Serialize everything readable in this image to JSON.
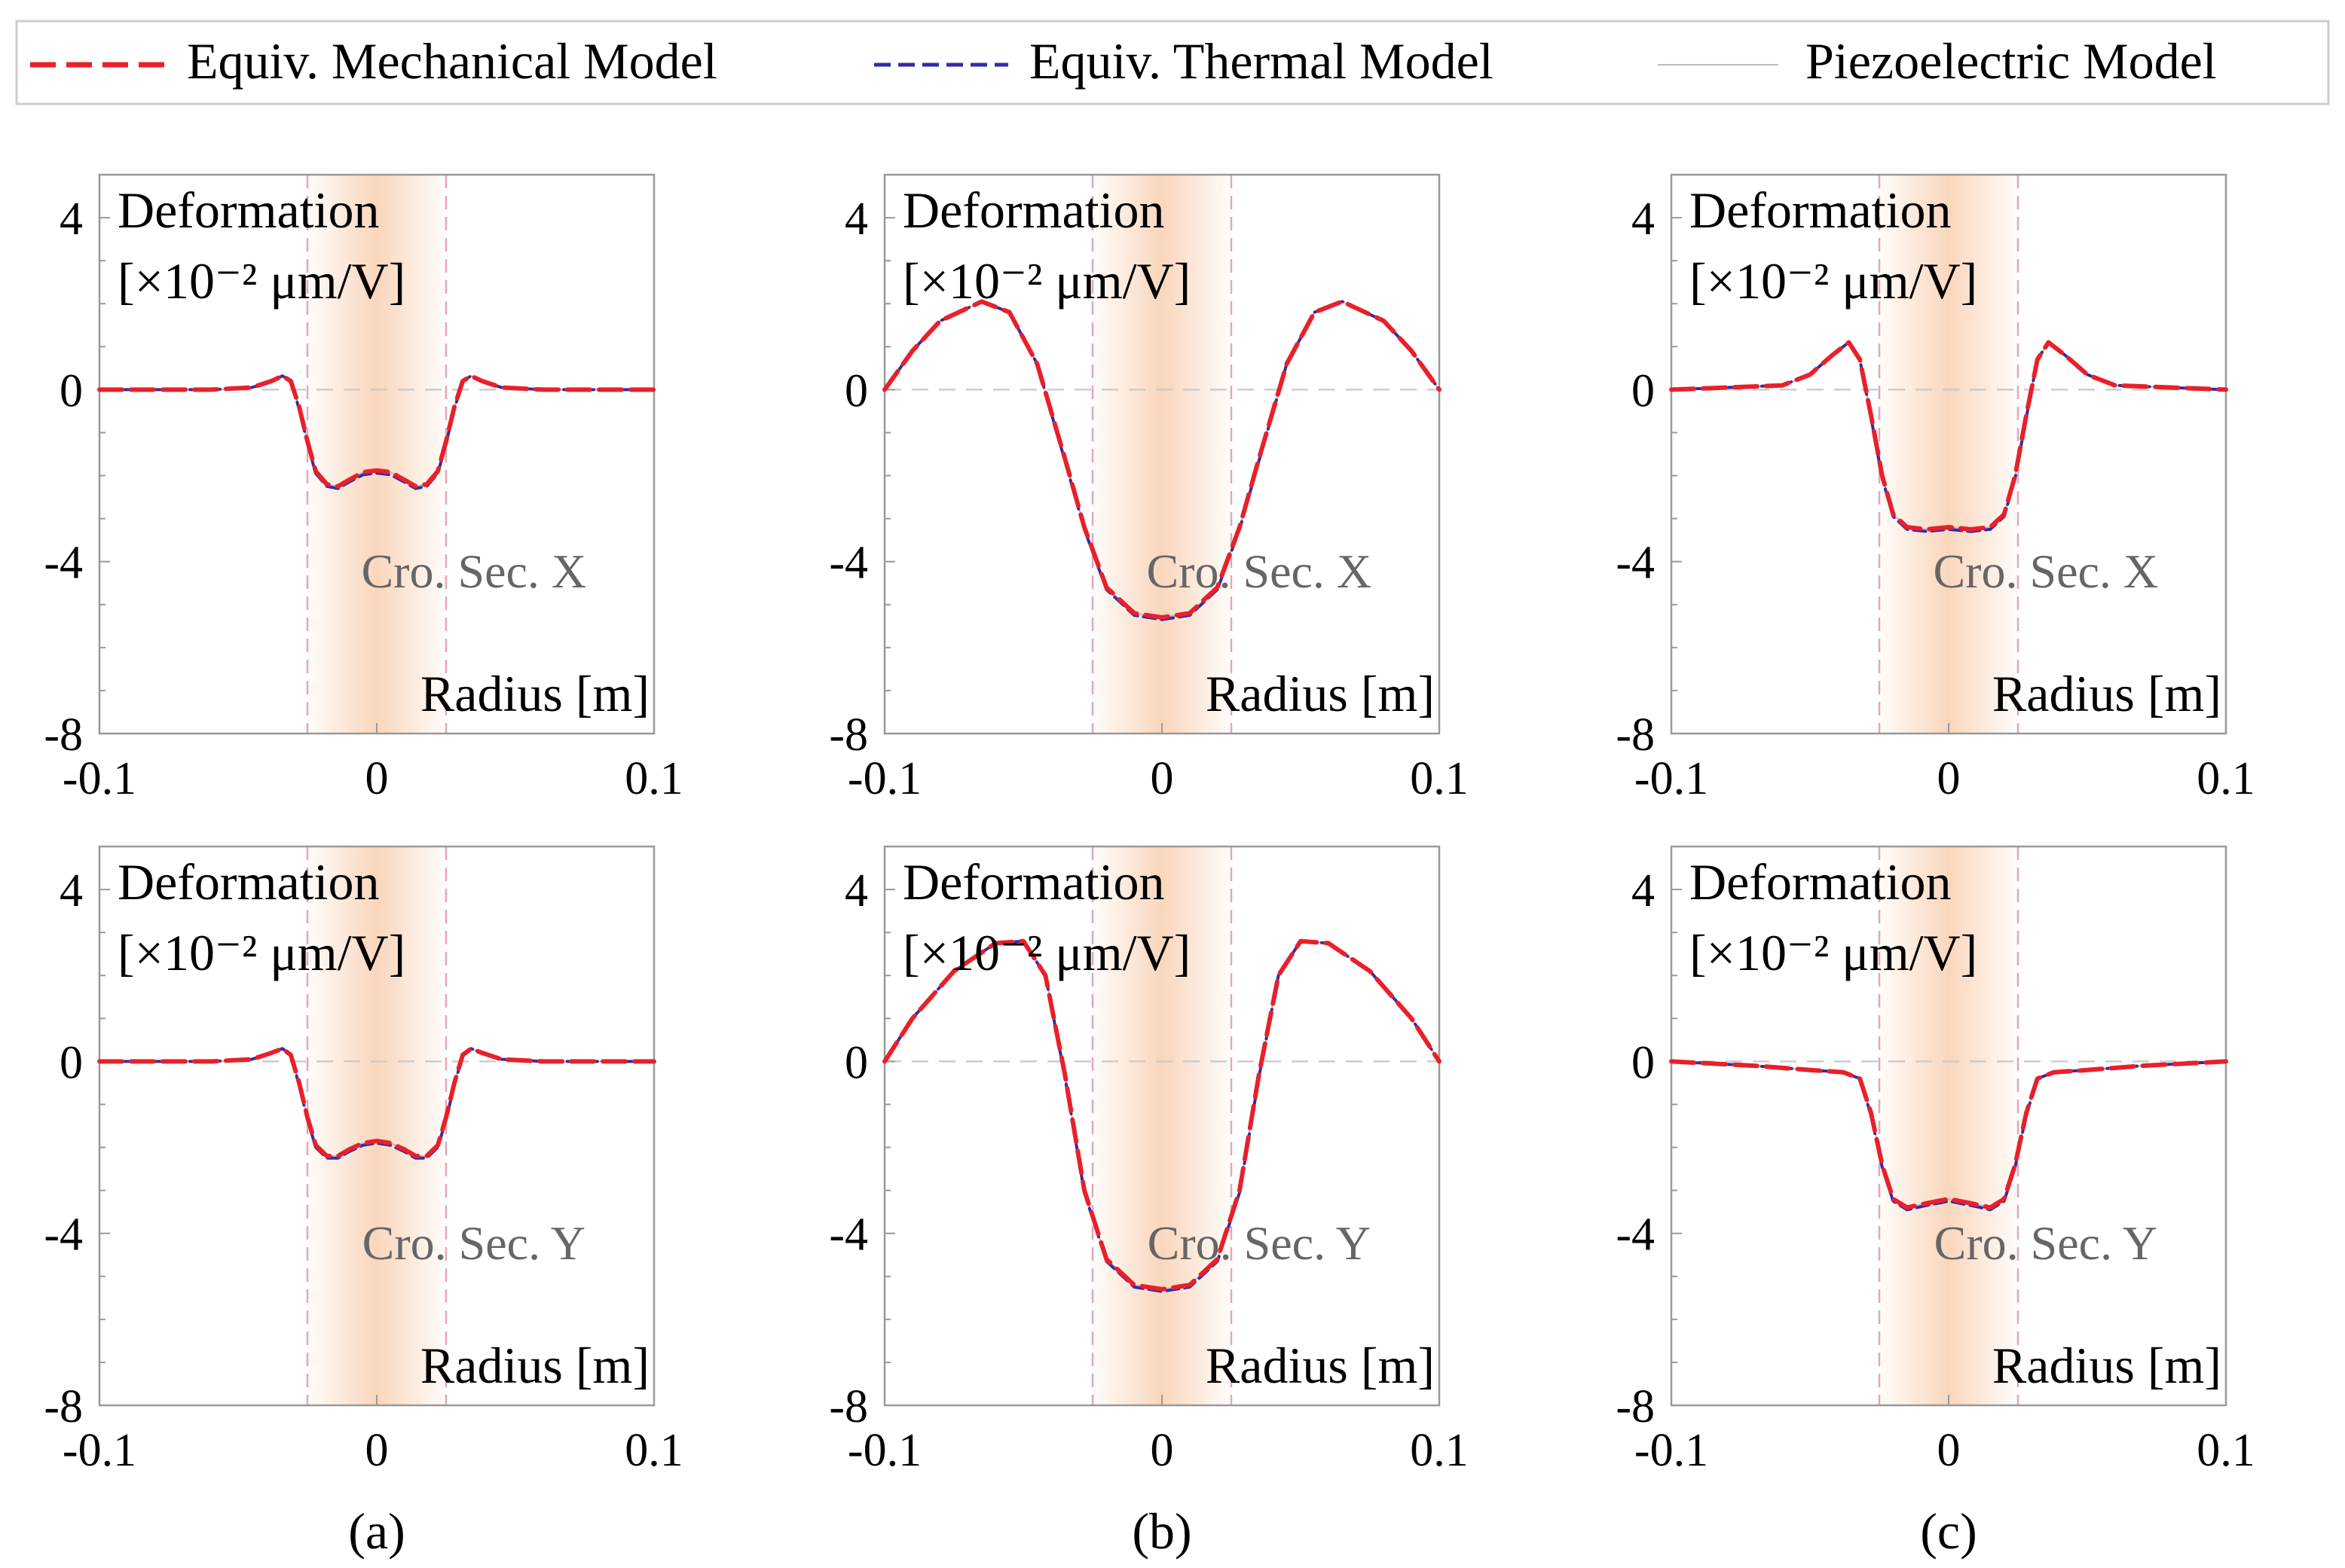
{
  "legend": {
    "placement": "top",
    "entries": [
      {
        "label": "Equiv. Mechanical Model",
        "color": "#e8202a",
        "style": "dashed"
      },
      {
        "label": "Equiv. Thermal Model",
        "color": "#2e2ea8",
        "style": "dashed"
      },
      {
        "label": "Piezoelectric Model",
        "color": "#bbbbbb",
        "style": "solid"
      }
    ]
  },
  "colors": {
    "highlight": "#f7c9a6",
    "guide": "#e3a8b4",
    "annotation": "#666666",
    "axis": "#999999"
  },
  "column_labels": [
    "(a)",
    "(b)",
    "(c)"
  ],
  "chart_data": [
    {
      "type": "line",
      "id": "a-top",
      "ylabel_line1": "Deformation",
      "ylabel_line2": "[×10⁻² μm/V]",
      "xlabel": "Radius [m]",
      "annotation": "Cro. Sec. X",
      "xlim": [
        -0.1,
        0.1
      ],
      "ylim": [
        -8,
        5
      ],
      "yticks": [
        4,
        0,
        -4,
        -8
      ],
      "xticks": [
        -0.1,
        0,
        0.1
      ],
      "highlight_range": [
        -0.025,
        0.025
      ],
      "x": [
        -0.1,
        -0.06,
        -0.045,
        -0.038,
        -0.034,
        -0.031,
        -0.028,
        -0.025,
        -0.022,
        -0.018,
        -0.014,
        -0.01,
        -0.005,
        0,
        0.005,
        0.01,
        0.014,
        0.018,
        0.022,
        0.025,
        0.028,
        0.031,
        0.034,
        0.038,
        0.045,
        0.06,
        0.1
      ],
      "series": [
        {
          "name": "Equiv. Mechanical Model",
          "y": [
            0,
            0,
            0.05,
            0.2,
            0.32,
            0.2,
            -0.4,
            -1.2,
            -1.9,
            -2.2,
            -2.25,
            -2.1,
            -1.92,
            -1.88,
            -1.92,
            -2.1,
            -2.25,
            -2.2,
            -1.9,
            -1.2,
            -0.4,
            0.2,
            0.32,
            0.2,
            0.05,
            0,
            0
          ]
        },
        {
          "name": "Equiv. Thermal Model",
          "y": [
            0,
            0,
            0.05,
            0.2,
            0.32,
            0.2,
            -0.45,
            -1.25,
            -1.95,
            -2.25,
            -2.3,
            -2.15,
            -1.98,
            -1.94,
            -1.98,
            -2.15,
            -2.3,
            -2.25,
            -1.95,
            -1.25,
            -0.45,
            0.2,
            0.32,
            0.2,
            0.05,
            0,
            0
          ]
        },
        {
          "name": "Piezoelectric Model",
          "y": [
            0,
            0,
            0.05,
            0.2,
            0.32,
            0.2,
            -0.4,
            -1.2,
            -1.9,
            -2.2,
            -2.25,
            -2.1,
            -1.92,
            -1.88,
            -1.92,
            -2.1,
            -2.25,
            -2.2,
            -1.9,
            -1.2,
            -0.4,
            0.2,
            0.32,
            0.2,
            0.05,
            0,
            0
          ]
        }
      ]
    },
    {
      "type": "line",
      "id": "b-top",
      "ylabel_line1": "Deformation",
      "ylabel_line2": "[×10⁻² μm/V]",
      "xlabel": "Radius [m]",
      "annotation": "Cro. Sec. X",
      "xlim": [
        -0.1,
        0.1
      ],
      "ylim": [
        -8,
        5
      ],
      "yticks": [
        4,
        0,
        -4,
        -8
      ],
      "xticks": [
        -0.1,
        0,
        0.1
      ],
      "highlight_range": [
        -0.025,
        0.025
      ],
      "x": [
        -0.1,
        -0.09,
        -0.08,
        -0.065,
        -0.055,
        -0.045,
        -0.035,
        -0.028,
        -0.02,
        -0.01,
        0,
        0.01,
        0.02,
        0.028,
        0.035,
        0.045,
        0.055,
        0.065,
        0.08,
        0.09,
        0.1
      ],
      "series": [
        {
          "name": "Equiv. Mechanical Model",
          "y": [
            0,
            0.9,
            1.6,
            2.05,
            1.8,
            0.6,
            -1.6,
            -3.2,
            -4.6,
            -5.2,
            -5.3,
            -5.2,
            -4.6,
            -3.2,
            -1.6,
            0.6,
            1.8,
            2.05,
            1.6,
            0.9,
            0
          ]
        },
        {
          "name": "Equiv. Thermal Model",
          "y": [
            0,
            0.9,
            1.6,
            2.05,
            1.8,
            0.6,
            -1.65,
            -3.25,
            -4.65,
            -5.25,
            -5.35,
            -5.25,
            -4.65,
            -3.25,
            -1.65,
            0.6,
            1.8,
            2.05,
            1.6,
            0.9,
            0
          ]
        },
        {
          "name": "Piezoelectric Model",
          "y": [
            0,
            0.9,
            1.6,
            2.05,
            1.8,
            0.6,
            -1.6,
            -3.2,
            -4.6,
            -5.2,
            -5.3,
            -5.2,
            -4.6,
            -3.2,
            -1.6,
            0.6,
            1.8,
            2.05,
            1.6,
            0.9,
            0
          ]
        }
      ]
    },
    {
      "type": "line",
      "id": "c-top",
      "ylabel_line1": "Deformation",
      "ylabel_line2": "[×10⁻² μm/V]",
      "xlabel": "Radius [m]",
      "annotation": "Cro. Sec. X",
      "xlim": [
        -0.1,
        0.1
      ],
      "ylim": [
        -8,
        5
      ],
      "yticks": [
        4,
        0,
        -4,
        -8
      ],
      "xticks": [
        -0.1,
        0,
        0.1
      ],
      "highlight_range": [
        -0.025,
        0.025
      ],
      "x": [
        -0.1,
        -0.06,
        -0.05,
        -0.042,
        -0.036,
        -0.032,
        -0.028,
        -0.024,
        -0.02,
        -0.015,
        -0.008,
        0,
        0.008,
        0.015,
        0.02,
        0.024,
        0.028,
        0.032,
        0.036,
        0.042,
        0.05,
        0.06,
        0.1
      ],
      "series": [
        {
          "name": "Equiv. Mechanical Model",
          "y": [
            0,
            0.1,
            0.35,
            0.8,
            1.1,
            0.7,
            -0.6,
            -2.0,
            -2.9,
            -3.2,
            -3.25,
            -3.2,
            -3.25,
            -3.2,
            -2.9,
            -2.0,
            -0.6,
            0.7,
            1.1,
            0.8,
            0.35,
            0.1,
            0
          ]
        },
        {
          "name": "Equiv. Thermal Model",
          "y": [
            0,
            0.1,
            0.35,
            0.8,
            1.1,
            0.7,
            -0.65,
            -2.05,
            -2.95,
            -3.25,
            -3.3,
            -3.25,
            -3.3,
            -3.25,
            -2.95,
            -2.05,
            -0.65,
            0.7,
            1.1,
            0.8,
            0.35,
            0.1,
            0
          ]
        },
        {
          "name": "Piezoelectric Model",
          "y": [
            0,
            0.1,
            0.35,
            0.8,
            1.1,
            0.7,
            -0.6,
            -2.0,
            -2.9,
            -3.2,
            -3.25,
            -3.2,
            -3.25,
            -3.2,
            -2.9,
            -2.0,
            -0.6,
            0.7,
            1.1,
            0.8,
            0.35,
            0.1,
            0
          ]
        }
      ]
    },
    {
      "type": "line",
      "id": "a-bottom",
      "ylabel_line1": "Deformation",
      "ylabel_line2": "[×10⁻² μm/V]",
      "xlabel": "Radius [m]",
      "annotation": "Cro. Sec. Y",
      "xlim": [
        -0.1,
        0.1
      ],
      "ylim": [
        -8,
        5
      ],
      "yticks": [
        4,
        0,
        -4,
        -8
      ],
      "xticks": [
        -0.1,
        0,
        0.1
      ],
      "highlight_range": [
        -0.025,
        0.025
      ],
      "x": [
        -0.1,
        -0.06,
        -0.045,
        -0.038,
        -0.034,
        -0.031,
        -0.028,
        -0.025,
        -0.022,
        -0.018,
        -0.014,
        -0.01,
        -0.005,
        0,
        0.005,
        0.01,
        0.014,
        0.018,
        0.022,
        0.025,
        0.028,
        0.031,
        0.034,
        0.038,
        0.045,
        0.06,
        0.1
      ],
      "series": [
        {
          "name": "Equiv. Mechanical Model",
          "y": [
            0,
            0,
            0.05,
            0.2,
            0.3,
            0.15,
            -0.5,
            -1.3,
            -1.95,
            -2.2,
            -2.2,
            -2.05,
            -1.9,
            -1.85,
            -1.9,
            -2.05,
            -2.2,
            -2.2,
            -1.95,
            -1.3,
            -0.5,
            0.15,
            0.3,
            0.2,
            0.05,
            0,
            0
          ]
        },
        {
          "name": "Equiv. Thermal Model",
          "y": [
            0,
            0,
            0.05,
            0.2,
            0.3,
            0.15,
            -0.55,
            -1.35,
            -2.0,
            -2.25,
            -2.25,
            -2.1,
            -1.95,
            -1.9,
            -1.95,
            -2.1,
            -2.25,
            -2.25,
            -2.0,
            -1.35,
            -0.55,
            0.15,
            0.3,
            0.2,
            0.05,
            0,
            0
          ]
        },
        {
          "name": "Piezoelectric Model",
          "y": [
            0,
            0,
            0.05,
            0.2,
            0.3,
            0.15,
            -0.5,
            -1.3,
            -1.95,
            -2.2,
            -2.2,
            -2.05,
            -1.9,
            -1.85,
            -1.9,
            -2.05,
            -2.2,
            -2.2,
            -1.95,
            -1.3,
            -0.5,
            0.15,
            0.3,
            0.2,
            0.05,
            0,
            0
          ]
        }
      ]
    },
    {
      "type": "line",
      "id": "b-bottom",
      "ylabel_line1": "Deformation",
      "ylabel_line2": "[×10⁻² μm/V]",
      "xlabel": "Radius [m]",
      "annotation": "Cro. Sec. Y",
      "xlim": [
        -0.1,
        0.1
      ],
      "ylim": [
        -8,
        5
      ],
      "yticks": [
        4,
        0,
        -4,
        -8
      ],
      "xticks": [
        -0.1,
        0,
        0.1
      ],
      "highlight_range": [
        -0.025,
        0.025
      ],
      "x": [
        -0.1,
        -0.09,
        -0.075,
        -0.06,
        -0.05,
        -0.042,
        -0.035,
        -0.028,
        -0.02,
        -0.01,
        0,
        0.01,
        0.02,
        0.028,
        0.035,
        0.042,
        0.05,
        0.06,
        0.075,
        0.09,
        0.1
      ],
      "series": [
        {
          "name": "Equiv. Mechanical Model",
          "y": [
            0,
            1.0,
            2.1,
            2.75,
            2.8,
            2.0,
            -0.3,
            -3.0,
            -4.6,
            -5.2,
            -5.3,
            -5.2,
            -4.6,
            -3.0,
            -0.3,
            2.0,
            2.8,
            2.75,
            2.1,
            1.0,
            0
          ]
        },
        {
          "name": "Equiv. Thermal Model",
          "y": [
            0,
            1.0,
            2.1,
            2.75,
            2.8,
            2.0,
            -0.35,
            -3.05,
            -4.65,
            -5.25,
            -5.35,
            -5.25,
            -4.65,
            -3.05,
            -0.35,
            2.0,
            2.8,
            2.75,
            2.1,
            1.0,
            0
          ]
        },
        {
          "name": "Piezoelectric Model",
          "y": [
            0,
            1.0,
            2.1,
            2.75,
            2.8,
            2.0,
            -0.3,
            -3.0,
            -4.6,
            -5.2,
            -5.3,
            -5.2,
            -4.6,
            -3.0,
            -0.3,
            2.0,
            2.8,
            2.75,
            2.1,
            1.0,
            0
          ]
        }
      ]
    },
    {
      "type": "line",
      "id": "c-bottom",
      "ylabel_line1": "Deformation",
      "ylabel_line2": "[×10⁻² μm/V]",
      "xlabel": "Radius [m]",
      "annotation": "Cro. Sec. Y",
      "xlim": [
        -0.1,
        0.1
      ],
      "ylim": [
        -8,
        5
      ],
      "yticks": [
        4,
        0,
        -4,
        -8
      ],
      "xticks": [
        -0.1,
        0,
        0.1
      ],
      "highlight_range": [
        -0.025,
        0.025
      ],
      "x": [
        -0.1,
        -0.07,
        -0.05,
        -0.038,
        -0.032,
        -0.028,
        -0.024,
        -0.02,
        -0.015,
        -0.008,
        0,
        0.008,
        0.015,
        0.02,
        0.024,
        0.028,
        0.032,
        0.038,
        0.05,
        0.07,
        0.1
      ],
      "series": [
        {
          "name": "Equiv. Mechanical Model",
          "y": [
            0,
            -0.1,
            -0.2,
            -0.25,
            -0.4,
            -1.2,
            -2.4,
            -3.2,
            -3.4,
            -3.3,
            -3.2,
            -3.3,
            -3.4,
            -3.2,
            -2.4,
            -1.2,
            -0.4,
            -0.25,
            -0.2,
            -0.1,
            0
          ]
        },
        {
          "name": "Equiv. Thermal Model",
          "y": [
            0,
            -0.1,
            -0.2,
            -0.25,
            -0.4,
            -1.25,
            -2.45,
            -3.25,
            -3.45,
            -3.35,
            -3.25,
            -3.35,
            -3.45,
            -3.25,
            -2.45,
            -1.25,
            -0.4,
            -0.25,
            -0.2,
            -0.1,
            0
          ]
        },
        {
          "name": "Piezoelectric Model",
          "y": [
            0,
            -0.1,
            -0.2,
            -0.25,
            -0.4,
            -1.2,
            -2.4,
            -3.2,
            -3.4,
            -3.3,
            -3.2,
            -3.3,
            -3.4,
            -3.2,
            -2.4,
            -1.2,
            -0.4,
            -0.25,
            -0.2,
            -0.1,
            0
          ]
        }
      ]
    }
  ]
}
